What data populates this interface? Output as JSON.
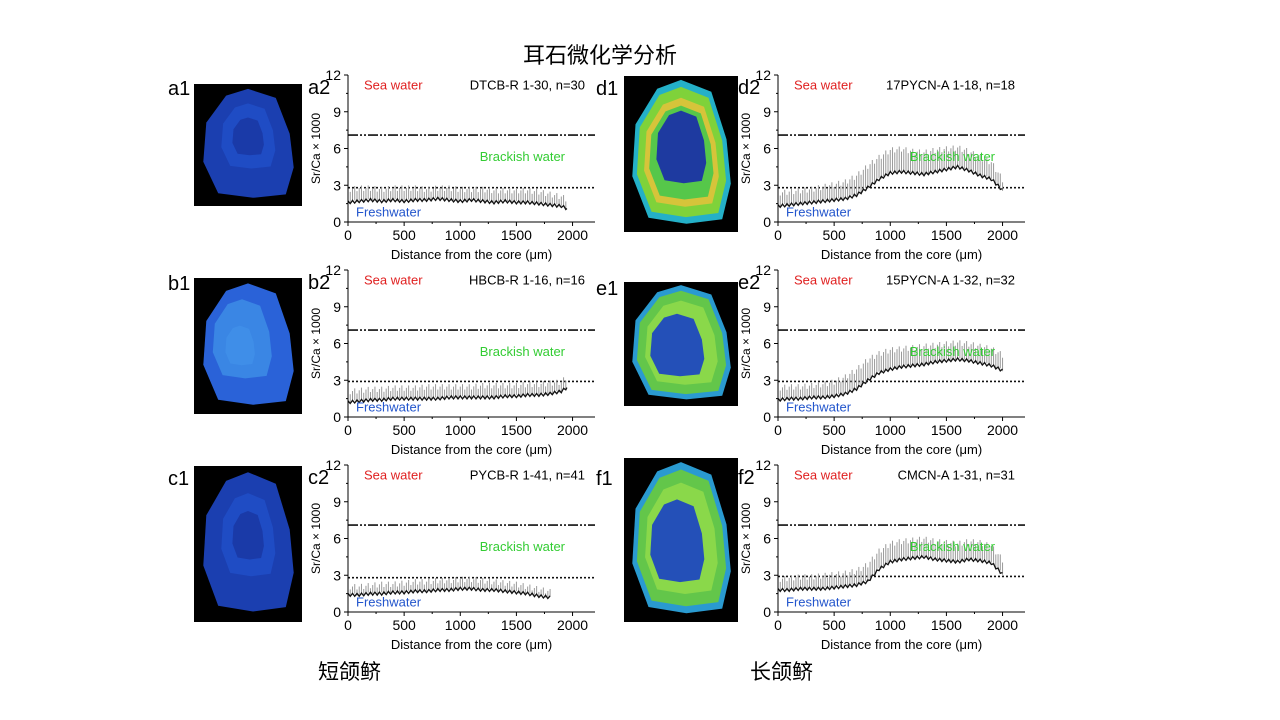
{
  "title": "耳石微化学分析",
  "groups": {
    "left": "短颌鲚",
    "right": "长颌鲚"
  },
  "panels": [
    {
      "id": "a",
      "image_label": "a1",
      "chart_label": "a2",
      "image_style": "blue-sparse"
    },
    {
      "id": "b",
      "image_label": "b1",
      "chart_label": "b2",
      "image_style": "blue-light"
    },
    {
      "id": "c",
      "image_label": "c1",
      "chart_label": "c2",
      "image_style": "blue-sparse"
    },
    {
      "id": "d",
      "image_label": "d1",
      "chart_label": "d2",
      "image_style": "green-yellow"
    },
    {
      "id": "e",
      "image_label": "e1",
      "chart_label": "e2",
      "image_style": "green"
    },
    {
      "id": "f",
      "image_label": "f1",
      "chart_label": "f2",
      "image_style": "green"
    }
  ],
  "chart_data": [
    {
      "type": "line",
      "panel": "a2",
      "sample": "DTCB-R 1-30, n=30",
      "xlabel": "Distance from the core (μm)",
      "ylabel": "Sr/Ca × 1000",
      "xlim": [
        0,
        2200
      ],
      "ylim": [
        0,
        12
      ],
      "xticks": [
        0,
        500,
        1000,
        1500,
        2000
      ],
      "yticks": [
        0,
        3,
        6,
        9,
        12
      ],
      "reference_lines": [
        {
          "name": "seawater",
          "y": 7.1,
          "style": "dash-dot-dot"
        },
        {
          "name": "freshwater-threshold",
          "y": 2.8,
          "style": "dotted"
        }
      ],
      "zone_labels": {
        "sea": "Sea water",
        "brackish": "Brackish water",
        "fresh": "Freshwater"
      },
      "series": [
        {
          "stat": "mean",
          "x": [
            0,
            100,
            200,
            300,
            400,
            500,
            600,
            700,
            800,
            900,
            1000,
            1100,
            1200,
            1300,
            1400,
            1500,
            1600,
            1700,
            1800,
            1900,
            1950
          ],
          "values": [
            1.6,
            1.7,
            1.8,
            1.7,
            1.8,
            1.7,
            1.8,
            1.8,
            1.9,
            1.8,
            1.7,
            1.8,
            1.7,
            1.6,
            1.7,
            1.6,
            1.6,
            1.5,
            1.4,
            1.3,
            1.1
          ]
        },
        {
          "stat": "upper",
          "x": [
            0,
            100,
            200,
            300,
            400,
            500,
            600,
            700,
            800,
            900,
            1000,
            1100,
            1200,
            1300,
            1400,
            1500,
            1600,
            1700,
            1800,
            1900,
            1950
          ],
          "values": [
            2.6,
            2.7,
            2.7,
            2.6,
            2.7,
            2.7,
            2.7,
            2.6,
            2.7,
            2.7,
            2.6,
            2.6,
            2.6,
            2.5,
            2.5,
            2.5,
            2.5,
            2.4,
            2.2,
            2.0,
            1.8
          ]
        }
      ],
      "colors": {
        "sea": "#e02020",
        "brackish": "#33cc33",
        "fresh": "#2255cc",
        "mean": "#111111",
        "band": "#9a9a9a"
      }
    },
    {
      "type": "line",
      "panel": "b2",
      "sample": "HBCB-R 1-16, n=16",
      "xlabel": "Distance from the core (μm)",
      "ylabel": "Sr/Ca × 1000",
      "xlim": [
        0,
        2200
      ],
      "ylim": [
        0,
        12
      ],
      "xticks": [
        0,
        500,
        1000,
        1500,
        2000
      ],
      "yticks": [
        0,
        3,
        6,
        9,
        12
      ],
      "reference_lines": [
        {
          "name": "seawater",
          "y": 7.1,
          "style": "dash-dot-dot"
        },
        {
          "name": "freshwater-threshold",
          "y": 2.9,
          "style": "dotted"
        }
      ],
      "zone_labels": {
        "sea": "Sea water",
        "brackish": "Brackish water",
        "fresh": "Freshwater"
      },
      "series": [
        {
          "stat": "mean",
          "x": [
            0,
            100,
            200,
            300,
            400,
            500,
            600,
            700,
            800,
            900,
            1000,
            1100,
            1200,
            1300,
            1400,
            1500,
            1600,
            1700,
            1800,
            1900,
            1950
          ],
          "values": [
            1.2,
            1.3,
            1.4,
            1.4,
            1.5,
            1.5,
            1.5,
            1.5,
            1.5,
            1.6,
            1.6,
            1.6,
            1.6,
            1.6,
            1.7,
            1.7,
            1.8,
            1.8,
            1.9,
            2.1,
            2.4
          ]
        },
        {
          "stat": "upper",
          "x": [
            0,
            100,
            200,
            300,
            400,
            500,
            600,
            700,
            800,
            900,
            1000,
            1100,
            1200,
            1300,
            1400,
            1500,
            1600,
            1700,
            1800,
            1900,
            1950
          ],
          "values": [
            2.0,
            2.1,
            2.2,
            2.2,
            2.3,
            2.3,
            2.3,
            2.4,
            2.4,
            2.4,
            2.4,
            2.4,
            2.5,
            2.5,
            2.5,
            2.5,
            2.6,
            2.6,
            2.7,
            2.8,
            3.2
          ]
        }
      ],
      "colors": {
        "sea": "#e02020",
        "brackish": "#33cc33",
        "fresh": "#2255cc",
        "mean": "#111111",
        "band": "#9a9a9a"
      }
    },
    {
      "type": "line",
      "panel": "c2",
      "sample": "PYCB-R 1-41, n=41",
      "xlabel": "Distance from the core (μm)",
      "ylabel": "Sr/Ca × 1000",
      "xlim": [
        0,
        2200
      ],
      "ylim": [
        0,
        12
      ],
      "xticks": [
        0,
        500,
        1000,
        1500,
        2000
      ],
      "yticks": [
        0,
        3,
        6,
        9,
        12
      ],
      "reference_lines": [
        {
          "name": "seawater",
          "y": 7.1,
          "style": "dash-dot-dot"
        },
        {
          "name": "freshwater-threshold",
          "y": 2.8,
          "style": "dotted"
        }
      ],
      "zone_labels": {
        "sea": "Sea water",
        "brackish": "Brackish water",
        "fresh": "Freshwater"
      },
      "series": [
        {
          "stat": "mean",
          "x": [
            0,
            100,
            200,
            300,
            400,
            500,
            600,
            700,
            800,
            900,
            1000,
            1100,
            1200,
            1300,
            1400,
            1500,
            1600,
            1700,
            1800
          ],
          "values": [
            1.4,
            1.4,
            1.5,
            1.5,
            1.6,
            1.6,
            1.7,
            1.7,
            1.8,
            1.8,
            1.9,
            1.9,
            1.8,
            1.8,
            1.7,
            1.6,
            1.5,
            1.3,
            1.2
          ]
        },
        {
          "stat": "upper",
          "x": [
            0,
            100,
            200,
            300,
            400,
            500,
            600,
            700,
            800,
            900,
            1000,
            1100,
            1200,
            1300,
            1400,
            1500,
            1600,
            1700,
            1800
          ],
          "values": [
            2.0,
            2.0,
            2.1,
            2.2,
            2.2,
            2.3,
            2.4,
            2.4,
            2.5,
            2.5,
            2.6,
            2.6,
            2.5,
            2.4,
            2.3,
            2.2,
            2.0,
            1.8,
            1.6
          ]
        }
      ],
      "colors": {
        "sea": "#e02020",
        "brackish": "#33cc33",
        "fresh": "#2255cc",
        "mean": "#111111",
        "band": "#9a9a9a"
      }
    },
    {
      "type": "line",
      "panel": "d2",
      "sample": "17PYCN-A 1-18, n=18",
      "xlabel": "Distance from the core (μm)",
      "ylabel": "Sr/Ca × 1000",
      "xlim": [
        0,
        2200
      ],
      "ylim": [
        0,
        12
      ],
      "xticks": [
        0,
        500,
        1000,
        1500,
        2000
      ],
      "yticks": [
        0,
        3,
        6,
        9,
        12
      ],
      "reference_lines": [
        {
          "name": "seawater",
          "y": 7.1,
          "style": "dash-dot-dot"
        },
        {
          "name": "freshwater-threshold",
          "y": 2.8,
          "style": "dotted"
        }
      ],
      "zone_labels": {
        "sea": "Sea water",
        "brackish": "Brackish water",
        "fresh": "Freshwater"
      },
      "series": [
        {
          "stat": "mean",
          "x": [
            0,
            100,
            200,
            300,
            400,
            500,
            600,
            700,
            800,
            900,
            1000,
            1100,
            1200,
            1300,
            1400,
            1500,
            1600,
            1700,
            1800,
            1900,
            2000
          ],
          "values": [
            1.3,
            1.4,
            1.5,
            1.6,
            1.7,
            1.8,
            1.9,
            2.2,
            2.8,
            3.5,
            4.0,
            4.1,
            4.0,
            3.9,
            4.1,
            4.3,
            4.5,
            4.2,
            3.8,
            3.5,
            2.6
          ]
        },
        {
          "stat": "upper",
          "x": [
            0,
            100,
            200,
            300,
            400,
            500,
            600,
            700,
            800,
            900,
            1000,
            1100,
            1200,
            1300,
            1400,
            1500,
            1600,
            1700,
            1800,
            1900,
            2000
          ],
          "values": [
            2.3,
            2.4,
            2.5,
            2.6,
            2.8,
            3.0,
            3.2,
            3.7,
            4.5,
            5.2,
            5.8,
            5.9,
            5.7,
            5.6,
            5.8,
            5.9,
            6.0,
            5.7,
            5.2,
            4.8,
            3.4
          ]
        }
      ],
      "colors": {
        "sea": "#e02020",
        "brackish": "#33cc33",
        "fresh": "#2255cc",
        "mean": "#111111",
        "band": "#9a9a9a"
      }
    },
    {
      "type": "line",
      "panel": "e2",
      "sample": "15PYCN-A 1-32, n=32",
      "xlabel": "Distance from the core (μm)",
      "ylabel": "Sr/Ca × 1000",
      "xlim": [
        0,
        2200
      ],
      "ylim": [
        0,
        12
      ],
      "xticks": [
        0,
        500,
        1000,
        1500,
        2000
      ],
      "yticks": [
        0,
        3,
        6,
        9,
        12
      ],
      "reference_lines": [
        {
          "name": "seawater",
          "y": 7.1,
          "style": "dash-dot-dot"
        },
        {
          "name": "freshwater-threshold",
          "y": 2.9,
          "style": "dotted"
        }
      ],
      "zone_labels": {
        "sea": "Sea water",
        "brackish": "Brackish water",
        "fresh": "Freshwater"
      },
      "series": [
        {
          "stat": "mean",
          "x": [
            0,
            100,
            200,
            300,
            400,
            500,
            600,
            700,
            800,
            900,
            1000,
            1100,
            1200,
            1300,
            1400,
            1500,
            1600,
            1700,
            1800,
            1900,
            2000
          ],
          "values": [
            1.4,
            1.5,
            1.5,
            1.6,
            1.6,
            1.7,
            1.9,
            2.3,
            3.0,
            3.6,
            3.9,
            4.1,
            4.2,
            4.3,
            4.5,
            4.6,
            4.7,
            4.6,
            4.4,
            4.2,
            3.8
          ]
        },
        {
          "stat": "upper",
          "x": [
            0,
            100,
            200,
            300,
            400,
            500,
            600,
            700,
            800,
            900,
            1000,
            1100,
            1200,
            1300,
            1400,
            1500,
            1600,
            1700,
            1800,
            1900,
            2000
          ],
          "values": [
            2.3,
            2.4,
            2.4,
            2.5,
            2.6,
            2.8,
            3.2,
            3.8,
            4.6,
            5.1,
            5.4,
            5.5,
            5.6,
            5.7,
            5.8,
            5.9,
            6.0,
            5.9,
            5.7,
            5.5,
            5.0
          ]
        }
      ],
      "colors": {
        "sea": "#e02020",
        "brackish": "#33cc33",
        "fresh": "#2255cc",
        "mean": "#111111",
        "band": "#9a9a9a"
      }
    },
    {
      "type": "line",
      "panel": "f2",
      "sample": "CMCN-A 1-31, n=31",
      "xlabel": "Distance from the core (μm)",
      "ylabel": "Sr/Ca × 1000",
      "xlim": [
        0,
        2200
      ],
      "ylim": [
        0,
        12
      ],
      "xticks": [
        0,
        500,
        1000,
        1500,
        2000
      ],
      "yticks": [
        0,
        3,
        6,
        9,
        12
      ],
      "reference_lines": [
        {
          "name": "seawater",
          "y": 7.1,
          "style": "dash-dot-dot"
        },
        {
          "name": "freshwater-threshold",
          "y": 2.9,
          "style": "dotted"
        }
      ],
      "zone_labels": {
        "sea": "Sea water",
        "brackish": "Brackish water",
        "fresh": "Freshwater"
      },
      "series": [
        {
          "stat": "mean",
          "x": [
            0,
            100,
            200,
            300,
            400,
            500,
            600,
            700,
            800,
            900,
            1000,
            1100,
            1200,
            1300,
            1400,
            1500,
            1600,
            1700,
            1800,
            1900,
            2000
          ],
          "values": [
            1.8,
            1.8,
            1.9,
            1.9,
            1.9,
            2.0,
            2.1,
            2.2,
            2.5,
            3.5,
            4.1,
            4.3,
            4.4,
            4.5,
            4.3,
            4.2,
            4.1,
            4.3,
            4.2,
            4.0,
            3.1
          ]
        },
        {
          "stat": "upper",
          "x": [
            0,
            100,
            200,
            300,
            400,
            500,
            600,
            700,
            800,
            900,
            1000,
            1100,
            1200,
            1300,
            1400,
            1500,
            1600,
            1700,
            1800,
            1900,
            2000
          ],
          "values": [
            2.6,
            2.7,
            2.8,
            2.8,
            2.9,
            3.0,
            3.1,
            3.3,
            3.8,
            4.9,
            5.5,
            5.7,
            5.8,
            5.9,
            5.7,
            5.6,
            5.5,
            5.7,
            5.6,
            5.3,
            4.2
          ]
        }
      ],
      "colors": {
        "sea": "#e02020",
        "brackish": "#33cc33",
        "fresh": "#2255cc",
        "mean": "#111111",
        "band": "#9a9a9a"
      }
    }
  ]
}
